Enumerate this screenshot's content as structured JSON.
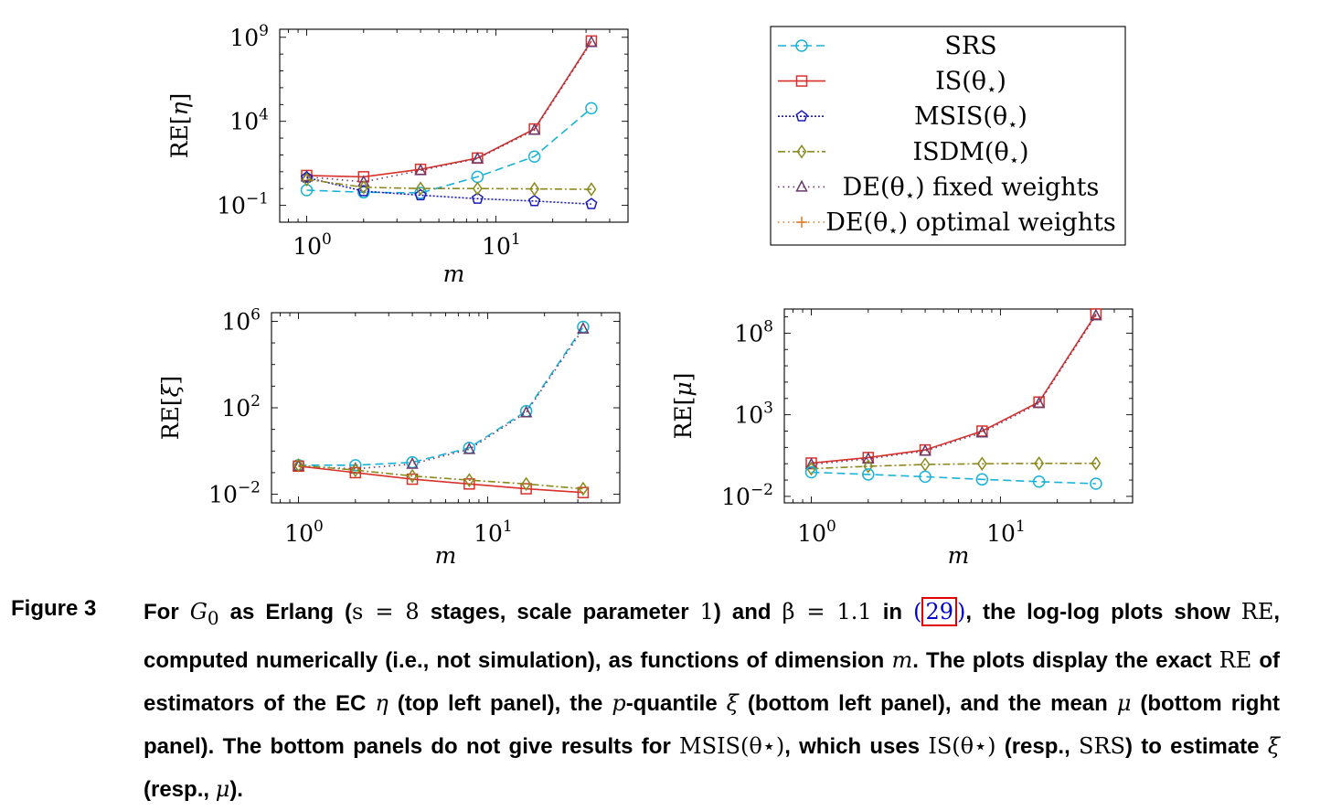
{
  "chart_data": [
    {
      "type": "line",
      "panel": "top left",
      "xscale": "log",
      "yscale": "log",
      "xlabel": "m",
      "ylabel": "RE[η]",
      "xlim": [
        0.72,
        50
      ],
      "ylim": [
        0.01,
        3000000000
      ],
      "xticks": [
        {
          "v": 1,
          "label": "10",
          "exp": "0"
        },
        {
          "v": 10,
          "label": "10",
          "exp": "1"
        }
      ],
      "yticks": [
        {
          "v": 0.1,
          "label": "10",
          "exp": "−1"
        },
        {
          "v": 10000,
          "label": "10",
          "exp": "4"
        },
        {
          "v": 1000000000,
          "label": "10",
          "exp": "9"
        }
      ],
      "x": [
        1,
        2,
        4,
        8,
        16,
        32
      ],
      "series": [
        {
          "key": "SRS",
          "values": [
            0.8,
            0.6,
            0.55,
            5,
            80,
            60000
          ]
        },
        {
          "key": "IS",
          "values": [
            6,
            5,
            14,
            65,
            3500,
            600000000
          ]
        },
        {
          "key": "DEfixed",
          "values": [
            5,
            2.5,
            12,
            60,
            3000,
            500000000
          ]
        },
        {
          "key": "MSIS",
          "values": [
            4.5,
            0.7,
            0.4,
            0.25,
            0.18,
            0.12
          ]
        },
        {
          "key": "ISDM",
          "values": [
            3.5,
            1.2,
            1.0,
            1.0,
            0.95,
            0.9
          ]
        }
      ]
    },
    {
      "type": "line",
      "panel": "bottom left",
      "xscale": "log",
      "yscale": "log",
      "xlabel": "m",
      "ylabel": "RE[ξ]",
      "xlim": [
        0.72,
        50
      ],
      "ylim": [
        0.004,
        2500000
      ],
      "xticks": [
        {
          "v": 1,
          "label": "10",
          "exp": "0"
        },
        {
          "v": 10,
          "label": "10",
          "exp": "1"
        }
      ],
      "yticks": [
        {
          "v": 0.01,
          "label": "10",
          "exp": "−2"
        },
        {
          "v": 100,
          "label": "10",
          "exp": "2"
        },
        {
          "v": 1000000,
          "label": "10",
          "exp": "6"
        }
      ],
      "x": [
        1,
        2,
        4,
        8,
        16,
        32
      ],
      "series": [
        {
          "key": "SRS",
          "values": [
            0.22,
            0.22,
            0.3,
            1.4,
            70,
            550000
          ]
        },
        {
          "key": "DEfixed",
          "values": [
            0.2,
            0.15,
            0.25,
            1.2,
            60,
            450000
          ]
        },
        {
          "key": "IS",
          "values": [
            0.2,
            0.1,
            0.05,
            0.03,
            0.018,
            0.012
          ]
        },
        {
          "key": "ISDM",
          "values": [
            0.22,
            0.13,
            0.07,
            0.045,
            0.03,
            0.018
          ]
        }
      ]
    },
    {
      "type": "line",
      "panel": "bottom right",
      "xscale": "log",
      "yscale": "log",
      "xlabel": "m",
      "ylabel": "RE[μ]",
      "xlim": [
        0.72,
        50
      ],
      "ylim": [
        0.004,
        3000000000
      ],
      "xticks": [
        {
          "v": 1,
          "label": "10",
          "exp": "0"
        },
        {
          "v": 10,
          "label": "10",
          "exp": "1"
        }
      ],
      "yticks": [
        {
          "v": 0.01,
          "label": "10",
          "exp": "−2"
        },
        {
          "v": 1000,
          "label": "10",
          "exp": "3"
        },
        {
          "v": 100000000,
          "label": "10",
          "exp": "8"
        }
      ],
      "x": [
        1,
        2,
        4,
        8,
        16,
        32
      ],
      "series": [
        {
          "key": "IS",
          "values": [
            1.1,
            2.4,
            7,
            100,
            6000,
            1500000000
          ]
        },
        {
          "key": "DEfixed",
          "values": [
            0.9,
            2.0,
            6,
            80,
            5000,
            1200000000
          ]
        },
        {
          "key": "ISDM",
          "values": [
            0.5,
            0.7,
            0.9,
            1.0,
            1.05,
            1.05
          ]
        },
        {
          "key": "SRS",
          "values": [
            0.3,
            0.22,
            0.16,
            0.11,
            0.08,
            0.06
          ]
        }
      ]
    }
  ],
  "legend": {
    "placement": "top-right",
    "entries": [
      {
        "key": "SRS",
        "label": "SRS"
      },
      {
        "key": "IS",
        "label": "IS(θ",
        "sub": "⋆",
        "tail": ")"
      },
      {
        "key": "MSIS",
        "label": "MSIS(θ",
        "sub": "⋆",
        "tail": ")"
      },
      {
        "key": "ISDM",
        "label": "ISDM(θ",
        "sub": "⋆",
        "tail": ")"
      },
      {
        "key": "DEfixed",
        "label": "DE(θ",
        "sub": "⋆",
        "tail": ") fixed weights"
      },
      {
        "key": "DEopt",
        "label": "DE(θ",
        "sub": "⋆",
        "tail": ") optimal weights"
      }
    ]
  },
  "styles": {
    "SRS": {
      "color": "#1ab2d8",
      "dash": "9 5",
      "marker": "circle"
    },
    "IS": {
      "color": "#d8302a",
      "dash": "",
      "marker": "square"
    },
    "MSIS": {
      "color": "#1a1ab8",
      "dash": "2 2",
      "marker": "pentagon"
    },
    "ISDM": {
      "color": "#8a8a1e",
      "dash": "8 3 2 3",
      "marker": "diamond"
    },
    "DEfixed": {
      "color": "#6a3a6a",
      "dash": "1.5 4",
      "marker": "triangle"
    },
    "DEopt": {
      "color": "#e07820",
      "dash": "1.5 4",
      "marker": "plus"
    }
  },
  "caption": {
    "label": "Figure 3",
    "p1": "For ",
    "g0": "G",
    "g0sub": "0",
    "p2": " as Erlang (",
    "seq": "s = 8",
    "p3": " stages, scale parameter ",
    "one": "1",
    "p4": ") and ",
    "beta": "β = 1.1",
    "p5": " in ",
    "ref": "29",
    "p6": ", the log-log plots show ",
    "re1": "RE",
    "p7": ", computed numerically (i.e., not simulation), as functions of dimension ",
    "m": "m",
    "p8": ". The plots display the exact ",
    "re2": "RE",
    "p9": " of estimators of the EC ",
    "eta": "η",
    "p10": " (top left panel), the ",
    "p": "p",
    "p11": "-quantile ",
    "xi": "ξ",
    "p12": " (bottom left panel), and the mean ",
    "mu": "μ",
    "p13": " (bottom right panel). The bottom panels do not give results for ",
    "msis": "MSIS(θ⋆)",
    "p14": ", which uses ",
    "is": "IS(θ⋆)",
    "p15": " (resp., ",
    "srs": "SRS",
    "p16": ") to estimate ",
    "xi2": "ξ",
    "p17": " (resp., ",
    "mu2": "μ",
    "p18": ")."
  }
}
